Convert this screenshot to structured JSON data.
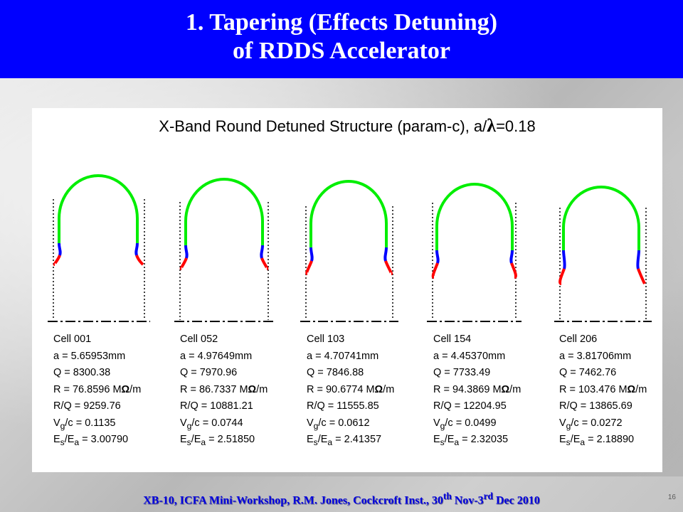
{
  "header": {
    "line1": "1. Tapering (Effects Detuning)",
    "line2": "of RDDS Accelerator"
  },
  "panel": {
    "title_text": "X-Band Round Detuned Structure (param-c), a/",
    "title_symbol": "λ",
    "title_value": "=0.18"
  },
  "colors": {
    "iris": "#ff0000",
    "transition": "#0000ff",
    "cavity": "#00ee00",
    "header_bg": "#0000ff"
  },
  "cells": [
    {
      "name": "Cell 001",
      "a": "a = 5.65953mm",
      "q": "Q = 8300.38",
      "r_pre": "R = 76.8596 M",
      "r_post": "/m",
      "rq": "R/Q = 9259.76",
      "vg_pre": "V",
      "vg_sub": "g",
      "vg_post": "/c = 0.1135",
      "es_pre": "E",
      "es_sub": "s",
      "es_mid": "/E",
      "es_sub2": "a",
      "es_post": " = 3.00790"
    },
    {
      "name": "Cell 052",
      "a": "a = 4.97649mm",
      "q": "Q = 7970.96",
      "r_pre": "R = 86.7337 M",
      "r_post": "/m",
      "rq": "R/Q = 10881.21",
      "vg_pre": "V",
      "vg_sub": "g",
      "vg_post": "/c = 0.0744",
      "es_pre": "E",
      "es_sub": "s",
      "es_mid": "/E",
      "es_sub2": "a",
      "es_post": " = 2.51850"
    },
    {
      "name": "Cell 103",
      "a": "a = 4.70741mm",
      "q": "Q = 7846.88",
      "r_pre": "R = 90.6774 M",
      "r_post": "/m",
      "rq": "R/Q = 11555.85",
      "vg_pre": "V",
      "vg_sub": "g",
      "vg_post": "/c = 0.0612",
      "es_pre": "E",
      "es_sub": "s",
      "es_mid": "/E",
      "es_sub2": "a",
      "es_post": " = 2.41357"
    },
    {
      "name": "Cell 154",
      "a": "a = 4.45370mm",
      "q": "Q = 7733.49",
      "r_pre": "R = 94.3869 M",
      "r_post": "/m",
      "rq": "R/Q = 12204.95",
      "vg_pre": "V",
      "vg_sub": "g",
      "vg_post": "/c = 0.0499",
      "es_pre": "E",
      "es_sub": "s",
      "es_mid": "/E",
      "es_sub2": "a",
      "es_post": " = 2.32035"
    },
    {
      "name": "Cell 206",
      "a": "a = 3.81706mm",
      "q": "Q = 7462.76",
      "r_pre": "R = 103.476 M",
      "r_post": "/m",
      "rq": "R/Q = 13865.69",
      "vg_pre": "V",
      "vg_sub": "g",
      "vg_post": "/c = 0.0272",
      "es_pre": "E",
      "es_sub": "s",
      "es_mid": "/E",
      "es_sub2": "a",
      "es_post": " = 2.18890"
    }
  ],
  "omega_symbol": "Ω",
  "footer": {
    "pre": "XB-10, ICFA Mini-Workshop, R.M. Jones, Cockcroft Inst., 30",
    "sup1": "th",
    "mid": " Nov-3",
    "sup2": "rd",
    "post": " Dec 2010"
  },
  "page_number": "16"
}
